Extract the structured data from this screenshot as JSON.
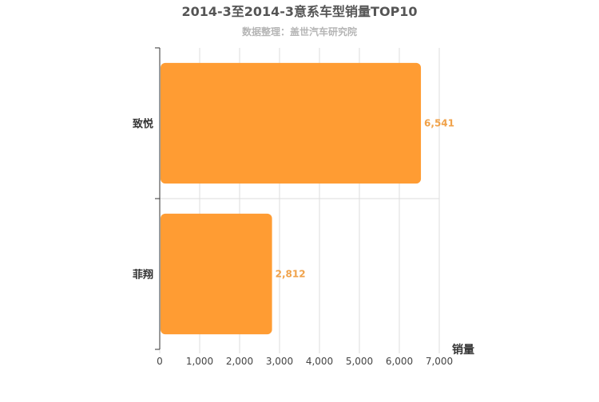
{
  "chart": {
    "title": "2014-3至2014-3意系车型销量TOP10",
    "subtitle": "数据整理：盖世汽车研究院"
  },
  "colors": {
    "bar": "#ff9c33",
    "label": "#f0a24a",
    "grid": "#dddddd",
    "axis": "#333333"
  },
  "chart_data": {
    "type": "bar",
    "orientation": "horizontal",
    "title": "2014-3至2014-3意系车型销量TOP10",
    "subtitle": "数据整理：盖世汽车研究院",
    "categories": [
      "致悦",
      "菲翔"
    ],
    "values": [
      6541,
      2812
    ],
    "value_labels": [
      "6,541",
      "2,812"
    ],
    "xlabel": "销量",
    "ylabel": "",
    "xlim": [
      0,
      7000
    ],
    "xticks": [
      0,
      1000,
      2000,
      3000,
      4000,
      5000,
      6000,
      7000
    ],
    "xtick_labels": [
      "0",
      "1,000",
      "2,000",
      "3,000",
      "4,000",
      "5,000",
      "6,000",
      "7,000"
    ],
    "grid": true,
    "legend": "none"
  }
}
